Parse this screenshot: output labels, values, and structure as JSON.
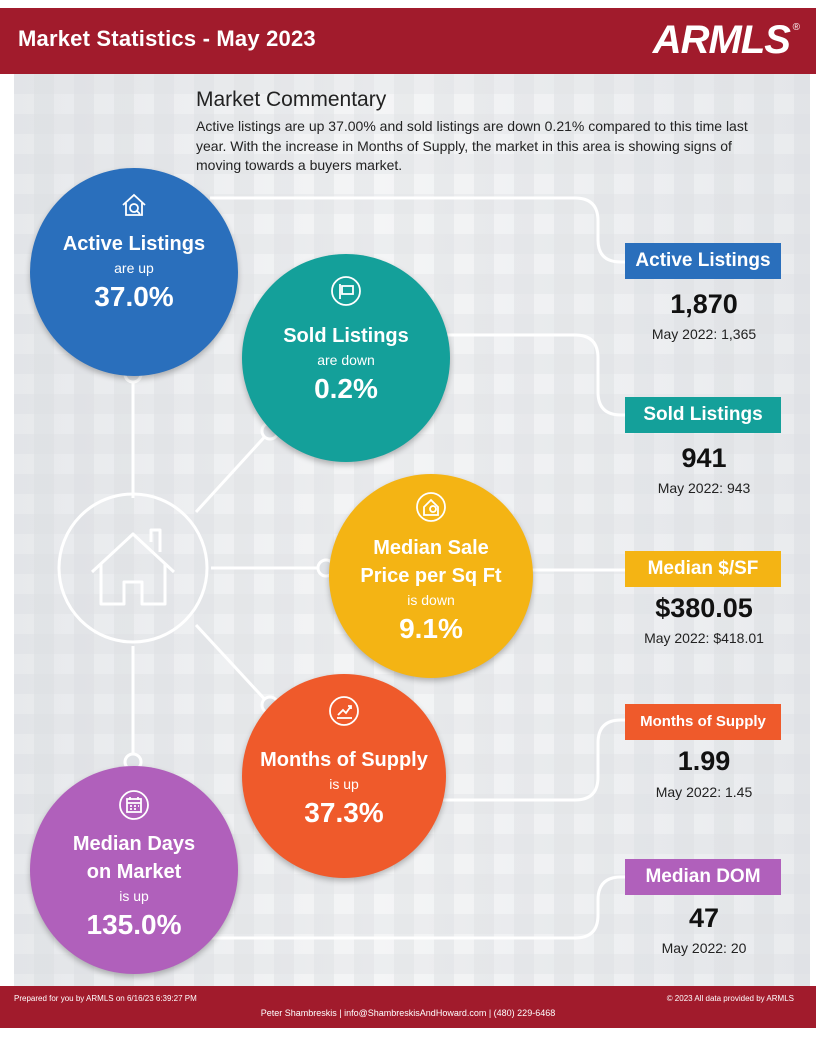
{
  "header": {
    "title": "Market Statistics - May 2023",
    "logo_text": "ARMLS",
    "logo_mark": "®",
    "colors": {
      "header_bg": "#a11b2c"
    }
  },
  "commentary": {
    "title": "Market Commentary",
    "text": "Active listings are up 37.00% and sold listings are down 0.21% compared to this time last year. With the increase in Months of Supply, the market in this area is showing signs of moving towards a buyers market."
  },
  "circles": {
    "active": {
      "title": "Active Listings",
      "sub": "are up",
      "value": "37.0%",
      "color": "#2a6fbc",
      "icon": "house-search-icon"
    },
    "sold": {
      "title": "Sold Listings",
      "sub": "are down",
      "value": "0.2%",
      "color": "#14a09a",
      "icon": "sale-sign-icon"
    },
    "price": {
      "title_line1": "Median Sale",
      "title_line2": "Price per Sq Ft",
      "sub": "is down",
      "value": "9.1%",
      "color": "#f4b414",
      "icon": "house-price-icon"
    },
    "supply": {
      "title": "Months of Supply",
      "sub": "is up",
      "value": "37.3%",
      "color": "#ef5a2b",
      "icon": "chart-up-icon"
    },
    "dom": {
      "title_line1": "Median Days",
      "title_line2": "on Market",
      "sub": "is up",
      "value": "135.0%",
      "color": "#b060bb",
      "icon": "calendar-icon"
    }
  },
  "stats": {
    "active": {
      "label": "Active Listings",
      "value": "1,870",
      "prev": "May 2022: 1,365"
    },
    "sold": {
      "label": "Sold Listings",
      "value": "941",
      "prev": "May 2022: 943"
    },
    "price": {
      "label": "Median $/SF",
      "value": "$380.05",
      "prev": "May 2022: $418.01"
    },
    "supply": {
      "label": "Months of Supply",
      "value": "1.99",
      "prev": "May 2022: 1.45"
    },
    "dom": {
      "label": "Median DOM",
      "value": "47",
      "prev": "May 2022: 20"
    }
  },
  "footer": {
    "prepared": "Prepared for you by ARMLS on 6/16/23 6:39:27 PM",
    "copyright": "© 2023 All data provided by ARMLS",
    "contact": "Peter Shambreskis | info@ShambreskisAndHoward.com | (480) 229-6468"
  }
}
